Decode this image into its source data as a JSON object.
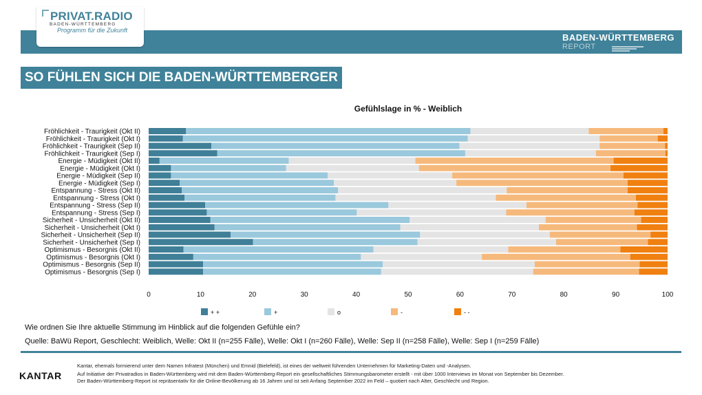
{
  "header": {
    "logo_name": "PRIVAT.RADIO",
    "logo_region": "BADEN-WÜRTTEMBERG",
    "logo_tagline": "Programm für die Zukunft",
    "report_line1": "BADEN-WÜRTTEMBERG",
    "report_line2": "REPORT",
    "bar_color": "#3f8299"
  },
  "page_title": "SO FÜHLEN SICH DIE BADEN-WÜRTTEMBERGER",
  "chart_data": {
    "type": "bar",
    "orientation": "horizontal",
    "stacked": true,
    "title": "Gefühlslage in % - Weiblich",
    "xlim": [
      0,
      100
    ],
    "xticks": [
      0,
      10,
      20,
      30,
      40,
      50,
      60,
      70,
      80,
      90,
      100
    ],
    "grid": false,
    "legend_position": "bottom",
    "categories": [
      "Fröhlichkeit - Traurigkeit (Okt II)",
      "Fröhlichkeit - Traurigkeit (Okt I)",
      "Fröhlichkeit - Traurigkeit (Sep II)",
      "Fröhlichkeit - Traurigkeit (Sep I)",
      "Energie - Müdigkeit (Okt II)",
      "Energie - Müdigkeit (Okt I)",
      "Energie - Müdigkeit (Sep II)",
      "Energie - Müdigkeit (Sep I)",
      "Entspannung - Stress (Okt II)",
      "Entspannung - Stress (Okt I)",
      "Entspannung - Stress (Sep II)",
      "Entspannung - Stress (Sep I)",
      "Sicherheit - Unsicherheit (Okt II)",
      "Sicherheit - Unsicherheit (Okt I)",
      "Sicherheit - Unsicherheit (Sep II)",
      "Sicherheit - Unsicherheit (Sep I)",
      "Optimismus - Besorgnis (Okt II)",
      "Optimismus - Besorgnis (Okt I)",
      "Optimismus - Besorgnis (Sep II)",
      "Optimismus - Besorgnis (Sep I)"
    ],
    "series": [
      {
        "name": "+ +",
        "color": "#3f7f97",
        "values": [
          7.2,
          6.6,
          12.1,
          13.2,
          2.1,
          4.3,
          4.3,
          6.0,
          6.4,
          6.9,
          10.9,
          11.2,
          11.9,
          12.7,
          15.8,
          20.1,
          6.7,
          8.6,
          10.5,
          10.5
        ]
      },
      {
        "name": "+",
        "color": "#9ac8dc",
        "values": [
          54.8,
          54.9,
          47.8,
          47.8,
          24.9,
          22.2,
          30.2,
          29.7,
          30.1,
          29.1,
          35.3,
          28.9,
          38.4,
          35.8,
          36.5,
          31.7,
          36.6,
          32.3,
          34.6,
          34.3
        ]
      },
      {
        "name": "o",
        "color": "#e4e4e4",
        "values": [
          22.8,
          25.4,
          27.0,
          25.2,
          24.4,
          25.6,
          24.0,
          23.6,
          32.5,
          30.9,
          26.6,
          28.8,
          26.2,
          26.7,
          25.0,
          26.7,
          26.0,
          23.3,
          29.3,
          29.3
        ]
      },
      {
        "name": "-",
        "color": "#f6b97c",
        "values": [
          14.4,
          11.2,
          12.6,
          13.4,
          38.2,
          36.9,
          33.0,
          33.0,
          23.3,
          27.0,
          21.4,
          24.7,
          18.4,
          18.9,
          19.4,
          17.7,
          21.6,
          28.6,
          20.2,
          20.4
        ]
      },
      {
        "name": "- -",
        "color": "#f08010",
        "values": [
          0.8,
          1.9,
          0.5,
          0.4,
          10.4,
          11.0,
          8.5,
          7.7,
          7.7,
          6.1,
          5.8,
          6.4,
          5.1,
          5.9,
          3.3,
          3.8,
          9.1,
          7.2,
          5.4,
          5.5
        ]
      }
    ]
  },
  "question": "Wie ordnen Sie Ihre aktuelle Stimmung im Hinblick auf die folgenden Gefühle ein?",
  "source": "Quelle: BaWü Report, Geschlecht: Weiblich, Welle: Okt II (n=255 Fälle), Welle: Okt I (n=260 Fälle), Welle: Sep II (n=258 Fälle), Welle: Sep I (n=259 Fälle)",
  "footer": {
    "kantar": "KANTAR",
    "line1": "Kantar, ehemals formierend unter dem Namen Infratest (München) und Emnid (Bielefeld), ist eines der weltweit führenden Unternehmen für Marketing-Daten und -Analysen.",
    "line2": "Auf Initiative der Privatradios in Baden-Württemberg wird mit dem Baden-Württemberg-Report ein gesellschaftliches Stimmungsbarometer erstellt - mit über 1000 Interviews im Monat von September bis Dezember.",
    "line3": "Der Baden-Württemberg-Report ist repräsentativ für die Online-Bevölkerung ab 16 Jahren und ist seit Anfang September 2022 im Feld – quotiert nach Alter, Geschlecht und Region."
  }
}
